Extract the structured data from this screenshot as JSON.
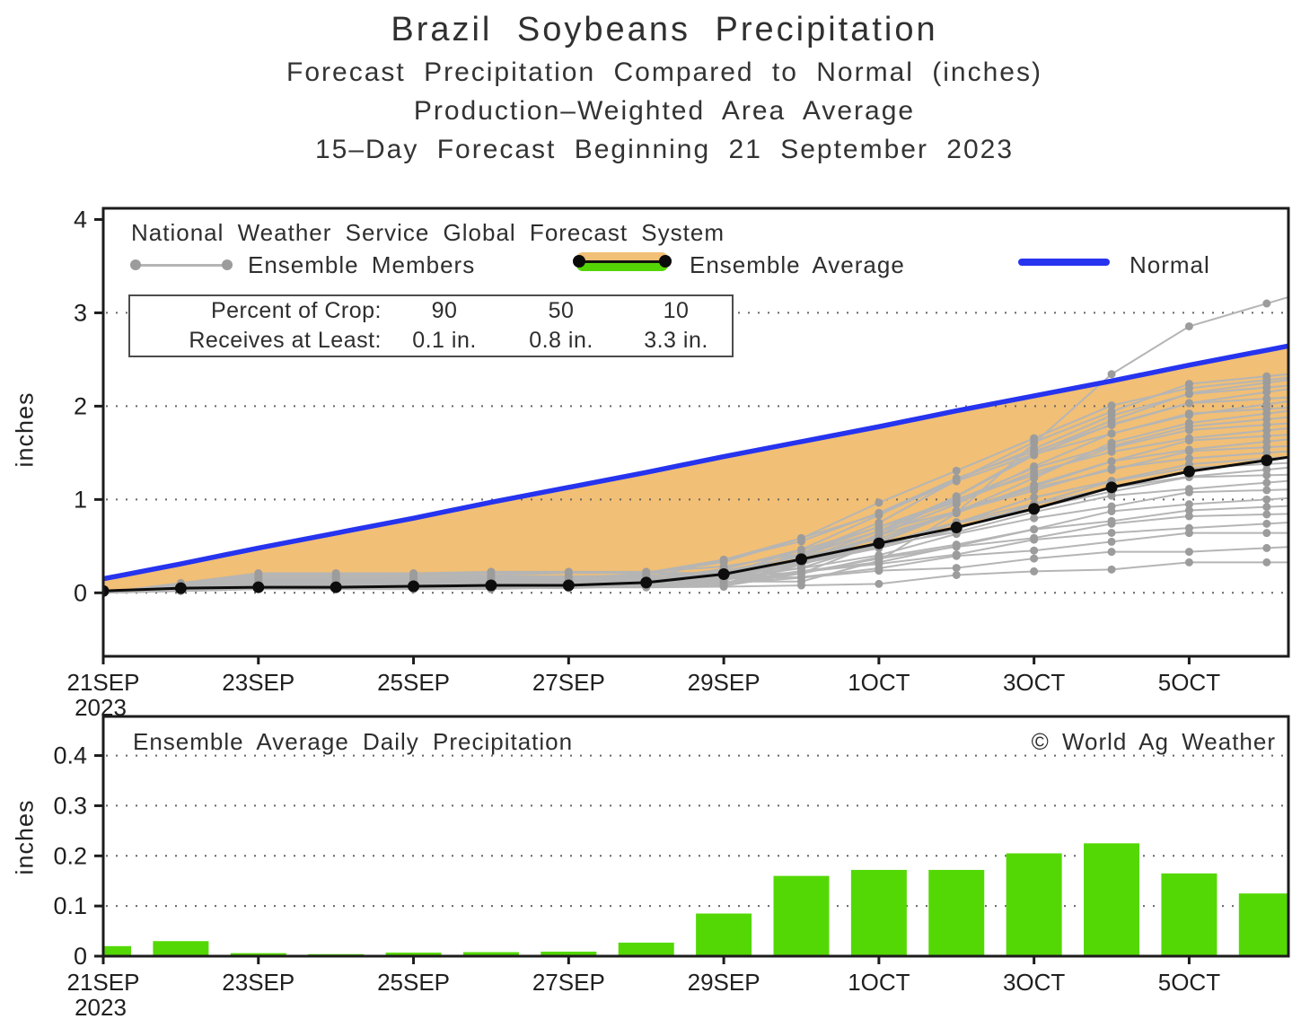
{
  "titles": {
    "main": "Brazil Soybeans Precipitation",
    "sub1": "Forecast Precipitation Compared to Normal (inches)",
    "sub2": "Production–Weighted Area Average",
    "sub3": "15–Day Forecast Beginning 21 September 2023"
  },
  "legend": {
    "source": "National Weather Service Global Forecast System",
    "items": [
      {
        "label": "Ensemble Members"
      },
      {
        "label": "Ensemble Average"
      },
      {
        "label": "Normal"
      }
    ]
  },
  "crop_table": {
    "rows": [
      {
        "label": "Percent of Crop:",
        "values": [
          "90",
          "50",
          "10"
        ]
      },
      {
        "label": "Receives at Least:",
        "values": [
          "0.1 in.",
          "0.8 in.",
          "3.3 in."
        ]
      }
    ]
  },
  "colors": {
    "normal_line": "#2633ef",
    "average_line": "#0d0d0d",
    "member_line": "#b5b5b5",
    "member_dot": "#9c9c9c",
    "deficit_fill": "#f1bf75",
    "surplus_fill": "#55d405",
    "bar_fill": "#54d805",
    "frame": "#1c1c1c",
    "grid": "#666666"
  },
  "chart_data": [
    {
      "id": "cumulative-precipitation",
      "type": "line",
      "ylabel": "inches",
      "ylim": [
        -0.68,
        4.12
      ],
      "x_span_days": 15.28,
      "dates": [
        "21SEP",
        "22SEP",
        "23SEP",
        "24SEP",
        "25SEP",
        "26SEP",
        "27SEP",
        "28SEP",
        "29SEP",
        "30SEP",
        "1OCT",
        "2OCT",
        "3OCT",
        "4OCT",
        "5OCT",
        "6OCT"
      ],
      "xticks": {
        "days": [
          0,
          2,
          4,
          6,
          8,
          10,
          12,
          14
        ],
        "labels": [
          "21SEP",
          "23SEP",
          "25SEP",
          "27SEP",
          "29SEP",
          "1OCT",
          "3OCT",
          "5OCT"
        ],
        "year_label": "2023"
      },
      "yticks": {
        "values": [
          0,
          1,
          2,
          3,
          4
        ],
        "labels": [
          "0",
          "1",
          "2",
          "3",
          "4"
        ]
      },
      "grid_values": [
        0,
        1,
        2,
        3
      ],
      "series": [
        {
          "name": "Normal",
          "values": [
            0.15,
            0.31,
            0.48,
            0.64,
            0.8,
            0.97,
            1.13,
            1.29,
            1.46,
            1.62,
            1.78,
            1.95,
            2.11,
            2.27,
            2.44,
            2.6
          ]
        },
        {
          "name": "Ensemble Average",
          "values": [
            0.02,
            0.05,
            0.06,
            0.06,
            0.07,
            0.08,
            0.08,
            0.11,
            0.2,
            0.36,
            0.53,
            0.7,
            0.9,
            1.13,
            1.3,
            1.42
          ]
        }
      ],
      "fill_between": {
        "upper": "Normal",
        "lower": "Ensemble Average",
        "meaning": "forecast deficit vs normal"
      },
      "ensemble_members": {
        "count": 30,
        "note": "params per member: [final_value_inches, early_amount, onset_day]; curves fan out after ~28SEP",
        "params": [
          [
            3.1,
            0.1,
            9.0
          ],
          [
            2.32,
            0.06,
            7.0
          ],
          [
            2.28,
            0.16,
            6.5
          ],
          [
            2.25,
            0.05,
            7.5
          ],
          [
            2.2,
            0.12,
            6.8
          ],
          [
            2.15,
            0.04,
            7.2
          ],
          [
            2.08,
            0.19,
            6.6
          ],
          [
            2.02,
            0.08,
            7.4
          ],
          [
            1.97,
            0.14,
            6.2
          ],
          [
            1.92,
            0.05,
            7.6
          ],
          [
            1.86,
            0.1,
            6.9
          ],
          [
            1.8,
            0.21,
            7.1
          ],
          [
            1.74,
            0.07,
            6.4
          ],
          [
            1.68,
            0.12,
            7.3
          ],
          [
            1.62,
            0.05,
            6.7
          ],
          [
            1.56,
            0.16,
            7.0
          ],
          [
            1.5,
            0.09,
            6.3
          ],
          [
            1.44,
            0.19,
            7.5
          ],
          [
            1.38,
            0.06,
            6.8
          ],
          [
            1.32,
            0.13,
            7.2
          ],
          [
            1.26,
            0.08,
            6.5
          ],
          [
            1.18,
            0.17,
            7.0
          ],
          [
            1.1,
            0.05,
            6.6
          ],
          [
            1.0,
            0.12,
            7.4
          ],
          [
            0.92,
            0.07,
            6.9
          ],
          [
            0.84,
            0.15,
            7.2
          ],
          [
            0.74,
            0.05,
            6.4
          ],
          [
            0.64,
            0.1,
            7.0
          ],
          [
            0.48,
            0.08,
            6.7
          ],
          [
            0.32,
            0.04,
            7.3
          ]
        ]
      }
    },
    {
      "id": "daily-precipitation",
      "type": "bar",
      "title": "Ensemble Average Daily Precipitation",
      "watermark": "© World Ag Weather",
      "ylabel": "inches",
      "ylim": [
        0,
        0.478
      ],
      "dates": [
        "21SEP",
        "22SEP",
        "23SEP",
        "24SEP",
        "25SEP",
        "26SEP",
        "27SEP",
        "28SEP",
        "29SEP",
        "30SEP",
        "1OCT",
        "2OCT",
        "3OCT",
        "4OCT",
        "5OCT",
        "6OCT"
      ],
      "values": [
        0.02,
        0.03,
        0.006,
        0.004,
        0.007,
        0.008,
        0.009,
        0.027,
        0.085,
        0.16,
        0.172,
        0.172,
        0.205,
        0.225,
        0.165,
        0.125
      ],
      "xticks": {
        "days": [
          0,
          2,
          4,
          6,
          8,
          10,
          12,
          14
        ],
        "labels": [
          "21SEP",
          "23SEP",
          "25SEP",
          "27SEP",
          "29SEP",
          "1OCT",
          "3OCT",
          "5OCT"
        ],
        "year_label": "2023"
      },
      "yticks": {
        "values": [
          0,
          0.1,
          0.2,
          0.3,
          0.4
        ],
        "labels": [
          "0",
          "0.1",
          "0.2",
          "0.3",
          "0.4"
        ]
      },
      "grid_values": [
        0.1,
        0.2,
        0.3,
        0.4
      ]
    }
  ]
}
